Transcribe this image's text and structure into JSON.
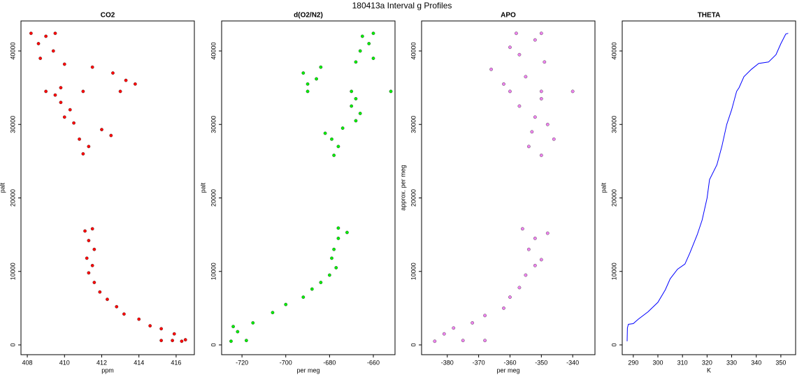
{
  "title": "180413a   Interval g Profiles",
  "chart_data": [
    {
      "type": "scatter",
      "title": "CO2",
      "x_label": "ppm",
      "y_label": "palt",
      "color": "#ff0000",
      "xlim": [
        407.66,
        416.98
      ],
      "xticks": [
        408,
        410,
        412,
        414,
        416
      ],
      "ylim": [
        -1330,
        44085
      ],
      "yticks": [
        0,
        10000,
        20000,
        30000,
        40000
      ],
      "x": [
        416.3,
        415.8,
        415.2,
        416.5,
        415.9,
        415.2,
        414.6,
        414,
        413.2,
        412.8,
        412.3,
        411.9,
        411.6,
        411.3,
        411.5,
        411.2,
        411.6,
        411.3,
        411.1,
        411.5,
        411.0,
        411.3,
        410.8,
        412.5,
        412,
        410.5,
        410.0,
        410.3,
        409.8,
        409.5,
        409,
        411,
        413,
        409.8,
        413.8,
        413.3,
        412.6,
        411.5,
        410.0,
        408.7,
        409.4,
        408.6,
        409.0,
        408.2,
        409.5
      ],
      "values": [
        500,
        600,
        600,
        700,
        1500,
        2200,
        2600,
        3500,
        4200,
        5200,
        6200,
        7200,
        8500,
        9800,
        10800,
        11800,
        13000,
        14200,
        15500,
        15800,
        26000,
        27000,
        28000,
        28500,
        29300,
        30200,
        31000,
        32000,
        33000,
        34000,
        34500,
        34500,
        34500,
        35000,
        35500,
        36000,
        37000,
        37800,
        38200,
        39000,
        40000,
        41000,
        42000,
        42400,
        42400
      ]
    },
    {
      "type": "scatter",
      "title": "d(O2/N2)",
      "x_label": "per meg",
      "y_label": "palt",
      "color": "#00ee00",
      "xlim": [
        -729.3,
        -650.1
      ],
      "xticks": [
        -720,
        -700,
        -680,
        -660
      ],
      "ylim": [
        -1330,
        44085
      ],
      "yticks": [
        0,
        10000,
        20000,
        30000,
        40000
      ],
      "x": [
        -725,
        -718,
        -722,
        -724,
        -715,
        -706,
        -700,
        -692,
        -688,
        -684,
        -680,
        -677,
        -679,
        -678,
        -676,
        -672,
        -676,
        -678,
        -676,
        -679,
        -682,
        -674,
        -668,
        -666,
        -670,
        -668,
        -690,
        -670,
        -652,
        -690,
        -686,
        -692,
        -684,
        -668,
        -660,
        -666,
        -662,
        -665,
        -660
      ],
      "values": [
        500,
        600,
        1800,
        2500,
        3000,
        4400,
        5500,
        6500,
        7600,
        8500,
        9500,
        10500,
        11800,
        13000,
        14500,
        15300,
        15900,
        25800,
        27000,
        28000,
        28800,
        29500,
        30500,
        31500,
        32500,
        33500,
        34500,
        34500,
        34500,
        35500,
        36200,
        37000,
        37800,
        38500,
        39000,
        40000,
        41000,
        42000,
        42400
      ]
    },
    {
      "type": "scatter",
      "title": "APO",
      "x_label": "per meg",
      "y_label": "approx. per meg",
      "color": "#ee82ee",
      "xlim": [
        -388.2,
        -332.9
      ],
      "xticks": [
        -380,
        -370,
        -360,
        -350,
        -340
      ],
      "ylim": [
        -1330,
        44085
      ],
      "yticks": [
        0,
        10000,
        20000,
        30000,
        40000
      ],
      "x": [
        -384,
        -375,
        -368,
        -381,
        -378,
        -372,
        -368,
        -362,
        -360,
        -357,
        -355,
        -352,
        -350,
        -354,
        -352,
        -348,
        -356,
        -350,
        -354,
        -346,
        -353,
        -348,
        -352,
        -357,
        -350,
        -360,
        -350,
        -340,
        -362,
        -355,
        -366,
        -349,
        -357,
        -360,
        -352,
        -358,
        -350
      ],
      "values": [
        500,
        600,
        600,
        1500,
        2300,
        3000,
        4000,
        5000,
        6500,
        7800,
        9500,
        10800,
        11600,
        13000,
        14500,
        15200,
        15800,
        25800,
        27000,
        28000,
        29000,
        30000,
        31000,
        32500,
        33500,
        34500,
        34500,
        34500,
        35500,
        36500,
        37500,
        38500,
        39500,
        40500,
        41500,
        42400,
        42400
      ]
    },
    {
      "type": "line",
      "title": "THETA",
      "x_label": "K",
      "y_label": "palt",
      "color": "#0000ff",
      "xlim": [
        285.5,
        356
      ],
      "xticks": [
        290,
        300,
        310,
        320,
        330,
        340,
        350
      ],
      "ylim": [
        -1330,
        44085
      ],
      "yticks": [
        0,
        10000,
        20000,
        30000,
        40000
      ],
      "x": [
        287.5,
        287.6,
        288,
        290,
        292,
        296,
        300,
        303,
        305,
        308,
        311,
        313,
        316,
        318,
        320,
        321,
        324,
        326,
        328,
        330,
        332,
        333,
        335,
        338,
        341,
        345,
        348,
        350,
        352,
        353
      ],
      "values": [
        500,
        2300,
        2800,
        2900,
        3500,
        4500,
        5800,
        7500,
        9000,
        10300,
        11000,
        12500,
        15000,
        17000,
        20000,
        22500,
        24500,
        27000,
        30000,
        32000,
        34500,
        35000,
        36500,
        37500,
        38300,
        38500,
        39500,
        41000,
        42300,
        42400
      ]
    }
  ]
}
